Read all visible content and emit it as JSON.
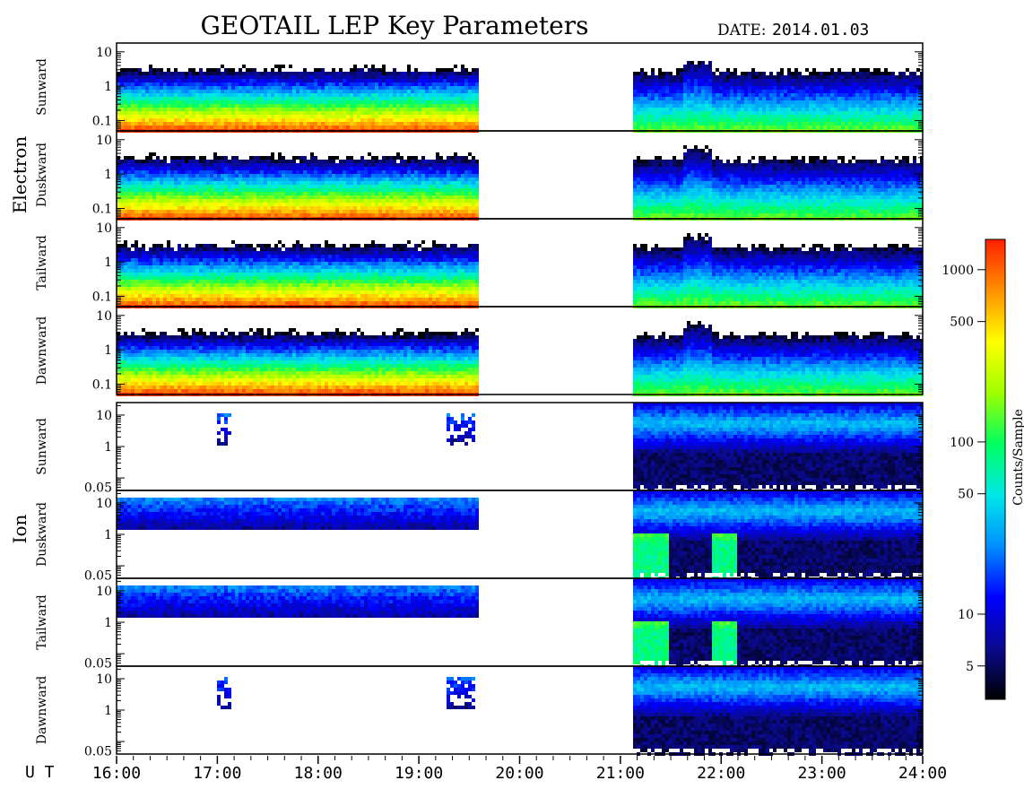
{
  "chart_data": {
    "type": "heatmap",
    "title": "GEOTAIL LEP Key Parameters",
    "date_label": "DATE:",
    "date_value": "2014.01.03",
    "x_axis_label": "U T",
    "x_ticks": [
      "16:00",
      "17:00",
      "18:00",
      "19:00",
      "20:00",
      "21:00",
      "22:00",
      "23:00",
      "24:00"
    ],
    "x_range_hours": [
      16,
      24
    ],
    "data_gap_hours": [
      19.58,
      21.1
    ],
    "groups": [
      {
        "name": "Electron",
        "y_scale": "log",
        "y_range": [
          0.05,
          18
        ],
        "y_ticks": [
          "10",
          "1",
          "0.1"
        ],
        "y_tick_values": [
          10,
          1,
          0.1
        ],
        "panels": [
          "Sunward",
          "Duskward",
          "Tailward",
          "Dawnward"
        ]
      },
      {
        "name": "Ion",
        "y_scale": "log",
        "y_range": [
          0.04,
          25
        ],
        "y_ticks": [
          "10",
          "1",
          "0.05"
        ],
        "y_tick_values": [
          10,
          1,
          0.05
        ],
        "panels": [
          "Sunward",
          "Duskward",
          "Tailward",
          "Dawnward"
        ]
      }
    ],
    "colorbar": {
      "label": "Counts/Sample",
      "scale": "log",
      "range": [
        3.2,
        1500
      ],
      "ticks": [
        "1000",
        "500",
        "100",
        "50",
        "10",
        "5"
      ],
      "tick_values": [
        1000,
        500,
        100,
        50,
        10,
        5
      ],
      "colors": [
        "#000000",
        "#0a0a90",
        "#0000ff",
        "#0090ff",
        "#00e8e8",
        "#00ff60",
        "#a0ff00",
        "#ffff00",
        "#ff9000",
        "#ff2000"
      ]
    }
  }
}
